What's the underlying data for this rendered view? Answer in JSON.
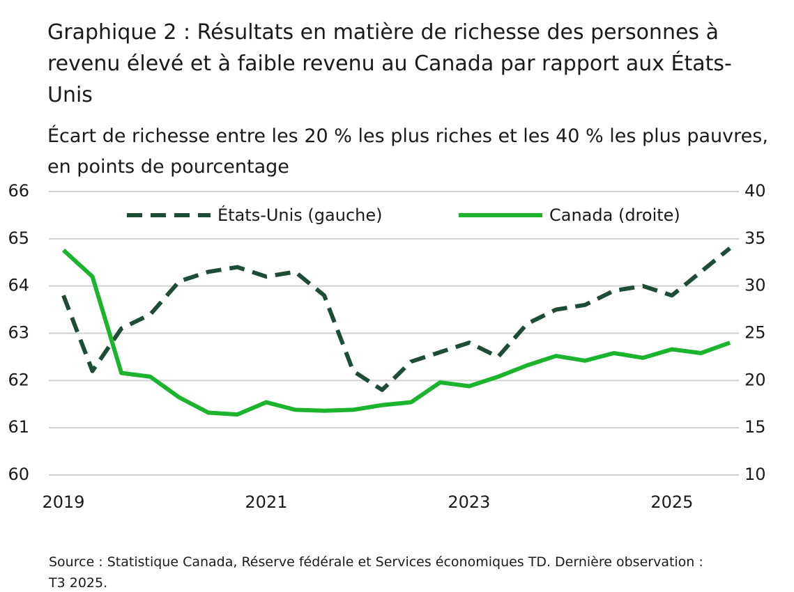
{
  "chart_data": {
    "type": "line",
    "title": "Graphique 2 : Résultats en matière de richesse des personnes à revenu élevé et à faible revenu au Canada par rapport aux États-Unis",
    "subtitle": "Écart de richesse entre les 20 % les plus riches et les 40 % les plus pauvres, en points de pourcentage",
    "source": "Source : Statistique Canada, Réserve fédérale et Services économiques TD. Dernière observation : T3 2025.",
    "categories": [
      "2019",
      null,
      null,
      null,
      null,
      null,
      null,
      "2021",
      null,
      null,
      null,
      null,
      null,
      null,
      "2023",
      null,
      null,
      null,
      null,
      null,
      null,
      "2025",
      null,
      null
    ],
    "series": [
      {
        "name": "États-Unis (gauche)",
        "color": "#1e4d36",
        "dashed": true,
        "axis": "y",
        "values": [
          63.8,
          62.2,
          63.1,
          63.4,
          64.1,
          64.3,
          64.4,
          64.2,
          64.3,
          63.8,
          62.2,
          61.8,
          62.4,
          62.6,
          62.8,
          62.5,
          63.2,
          63.5,
          63.6,
          63.9,
          64.0,
          63.8,
          64.3,
          64.8
        ]
      },
      {
        "name": "Canada (droite)",
        "color": "#1db42d",
        "dashed": false,
        "axis": "y2",
        "values": [
          33.8,
          31.0,
          20.8,
          20.4,
          18.2,
          16.6,
          16.4,
          17.7,
          16.9,
          16.8,
          16.9,
          17.4,
          17.7,
          19.8,
          19.4,
          20.4,
          21.6,
          22.6,
          22.1,
          22.9,
          22.4,
          23.3,
          22.9,
          24.0
        ]
      }
    ],
    "ylim": [
      60,
      66
    ],
    "yticks": [
      60,
      61,
      62,
      63,
      64,
      65,
      66
    ],
    "y2lim": [
      10,
      40
    ],
    "y2ticks": [
      10,
      15,
      20,
      25,
      30,
      35,
      40
    ],
    "grid": true
  }
}
